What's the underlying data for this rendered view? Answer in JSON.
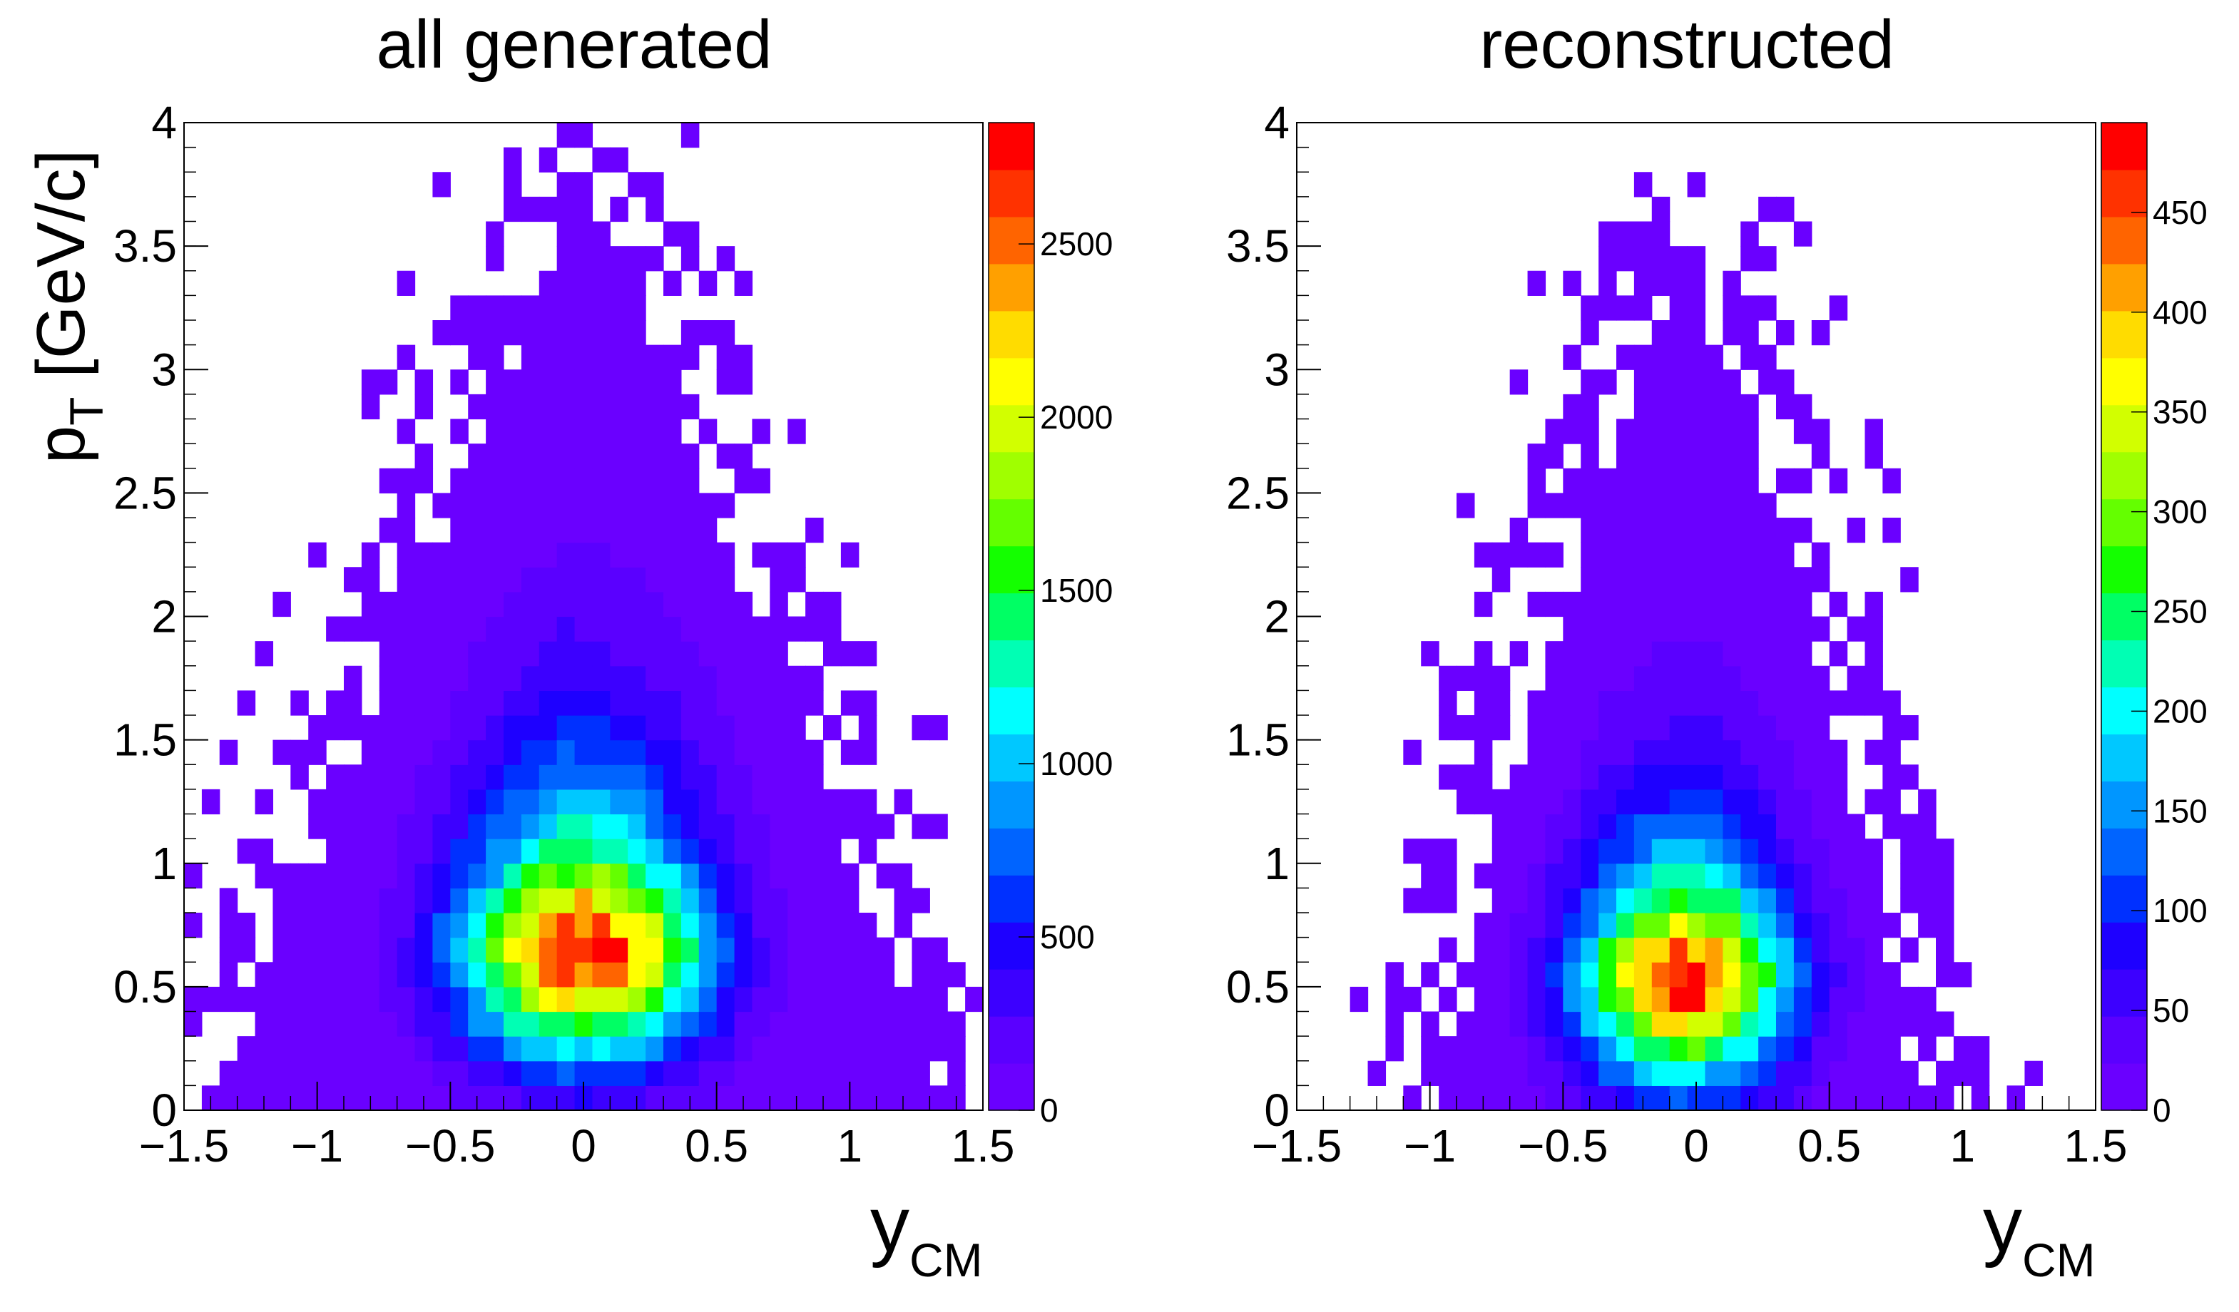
{
  "chart_data": [
    {
      "type": "heatmap",
      "title": "all generated",
      "xlabel": "y",
      "xlabel_sub": "CM",
      "ylabel": "p",
      "ylabel_sub": "T",
      "ylabel_unit": " [GeV/c]",
      "xlim": [
        -1.5,
        1.5
      ],
      "ylim": [
        0,
        4
      ],
      "x_bins": 45,
      "y_bins": 40,
      "x_ticks": [
        {
          "v": -1.5,
          "t": "−1.5"
        },
        {
          "v": -1,
          "t": "−1"
        },
        {
          "v": -0.5,
          "t": "−0.5"
        },
        {
          "v": 0,
          "t": "0"
        },
        {
          "v": 0.5,
          "t": "0.5"
        },
        {
          "v": 1,
          "t": "1"
        },
        {
          "v": 1.5,
          "t": "1.5"
        }
      ],
      "y_ticks": [
        {
          "v": 0,
          "t": "0"
        },
        {
          "v": 0.5,
          "t": "0.5"
        },
        {
          "v": 1,
          "t": "1"
        },
        {
          "v": 1.5,
          "t": "1.5"
        },
        {
          "v": 2,
          "t": "2"
        },
        {
          "v": 2.5,
          "t": "2.5"
        },
        {
          "v": 3,
          "t": "3"
        },
        {
          "v": 3.5,
          "t": "3.5"
        },
        {
          "v": 4,
          "t": "4"
        }
      ],
      "peak": {
        "y": 0.0,
        "pt": 0.7,
        "value": 2850
      },
      "width_y": 0.32,
      "slope_pt": 0.52,
      "acceptance": {
        "core_half_width_y": 1.45,
        "pt_max": 4.0,
        "curvature": 1.0,
        "sparse_fraction": 0.35
      },
      "color_scale": {
        "min": 0,
        "max": 2850,
        "ticks": [
          {
            "v": 0,
            "t": "0"
          },
          {
            "v": 500,
            "t": "500"
          },
          {
            "v": 1000,
            "t": "1000"
          },
          {
            "v": 1500,
            "t": "1500"
          },
          {
            "v": 2000,
            "t": "2000"
          },
          {
            "v": 2500,
            "t": "2500"
          }
        ]
      }
    },
    {
      "type": "heatmap",
      "title": "reconstructed",
      "xlabel": "y",
      "xlabel_sub": "CM",
      "xlim": [
        -1.5,
        1.5
      ],
      "ylim": [
        0,
        4
      ],
      "x_bins": 45,
      "y_bins": 40,
      "x_ticks": [
        {
          "v": -1.5,
          "t": "−1.5"
        },
        {
          "v": -1,
          "t": "−1"
        },
        {
          "v": -0.5,
          "t": "−0.5"
        },
        {
          "v": 0,
          "t": "0"
        },
        {
          "v": 0.5,
          "t": "0.5"
        },
        {
          "v": 1,
          "t": "1"
        },
        {
          "v": 1.5,
          "t": "1.5"
        }
      ],
      "y_ticks": [
        {
          "v": 0,
          "t": "0"
        },
        {
          "v": 0.5,
          "t": "0.5"
        },
        {
          "v": 1,
          "t": "1"
        },
        {
          "v": 1.5,
          "t": "1.5"
        },
        {
          "v": 2,
          "t": "2"
        },
        {
          "v": 2.5,
          "t": "2.5"
        },
        {
          "v": 3,
          "t": "3"
        },
        {
          "v": 3.5,
          "t": "3.5"
        },
        {
          "v": 4,
          "t": "4"
        }
      ],
      "peak": {
        "y": -0.05,
        "pt": 0.6,
        "value": 495
      },
      "width_y": 0.27,
      "slope_pt": 0.42,
      "acceptance": {
        "core_half_width_y": 0.95,
        "pt_max": 3.75,
        "curvature": 1.3,
        "sparse_fraction": 0.35
      },
      "color_scale": {
        "min": 0,
        "max": 495,
        "ticks": [
          {
            "v": 0,
            "t": "0"
          },
          {
            "v": 50,
            "t": "50"
          },
          {
            "v": 100,
            "t": "100"
          },
          {
            "v": 150,
            "t": "150"
          },
          {
            "v": 200,
            "t": "200"
          },
          {
            "v": 250,
            "t": "250"
          },
          {
            "v": 300,
            "t": "300"
          },
          {
            "v": 350,
            "t": "350"
          },
          {
            "v": 400,
            "t": "400"
          },
          {
            "v": 450,
            "t": "450"
          }
        ]
      }
    }
  ],
  "palette": [
    "#6a00ff",
    "#5a00ff",
    "#3c00ff",
    "#1e00ff",
    "#0030ff",
    "#0064ff",
    "#0096ff",
    "#00c8ff",
    "#00ffff",
    "#00ffb4",
    "#00ff64",
    "#14ff00",
    "#64ff00",
    "#a0ff00",
    "#d2ff00",
    "#ffff00",
    "#ffdc00",
    "#ffa000",
    "#ff6400",
    "#ff3200",
    "#ff0000"
  ]
}
